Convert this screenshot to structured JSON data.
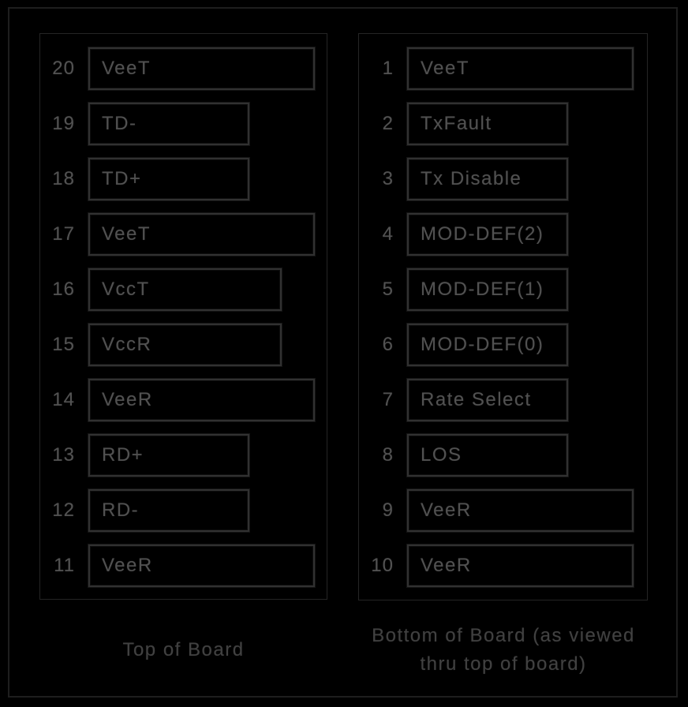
{
  "colors": {
    "background": "#000000",
    "frame_border": "#1e1e1e",
    "panel_border": "#252525",
    "box_border": "#313131",
    "text": "#515151"
  },
  "panels": {
    "left": {
      "caption": "Top of Board",
      "pins": [
        {
          "number": "20",
          "label": "VeeT",
          "width": "wide"
        },
        {
          "number": "19",
          "label": "TD-",
          "width": "narrow"
        },
        {
          "number": "18",
          "label": "TD+",
          "width": "narrow"
        },
        {
          "number": "17",
          "label": "VeeT",
          "width": "wide"
        },
        {
          "number": "16",
          "label": "VccT",
          "width": "medium"
        },
        {
          "number": "15",
          "label": "VccR",
          "width": "medium"
        },
        {
          "number": "14",
          "label": "VeeR",
          "width": "wide"
        },
        {
          "number": "13",
          "label": "RD+",
          "width": "narrow"
        },
        {
          "number": "12",
          "label": "RD-",
          "width": "narrow"
        },
        {
          "number": "11",
          "label": "VeeR",
          "width": "wide"
        }
      ]
    },
    "right": {
      "caption": "Bottom of Board (as viewed thru top of board)",
      "pins": [
        {
          "number": "1",
          "label": "VeeT",
          "width": "wide"
        },
        {
          "number": "2",
          "label": "TxFault",
          "width": "narrow"
        },
        {
          "number": "3",
          "label": "Tx Disable",
          "width": "narrow"
        },
        {
          "number": "4",
          "label": "MOD-DEF(2)",
          "width": "narrow"
        },
        {
          "number": "5",
          "label": "MOD-DEF(1)",
          "width": "narrow"
        },
        {
          "number": "6",
          "label": "MOD-DEF(0)",
          "width": "narrow"
        },
        {
          "number": "7",
          "label": "Rate Select",
          "width": "narrow"
        },
        {
          "number": "8",
          "label": "LOS",
          "width": "narrow"
        },
        {
          "number": "9",
          "label": "VeeR",
          "width": "wide"
        },
        {
          "number": "10",
          "label": "VeeR",
          "width": "wide"
        }
      ]
    }
  }
}
